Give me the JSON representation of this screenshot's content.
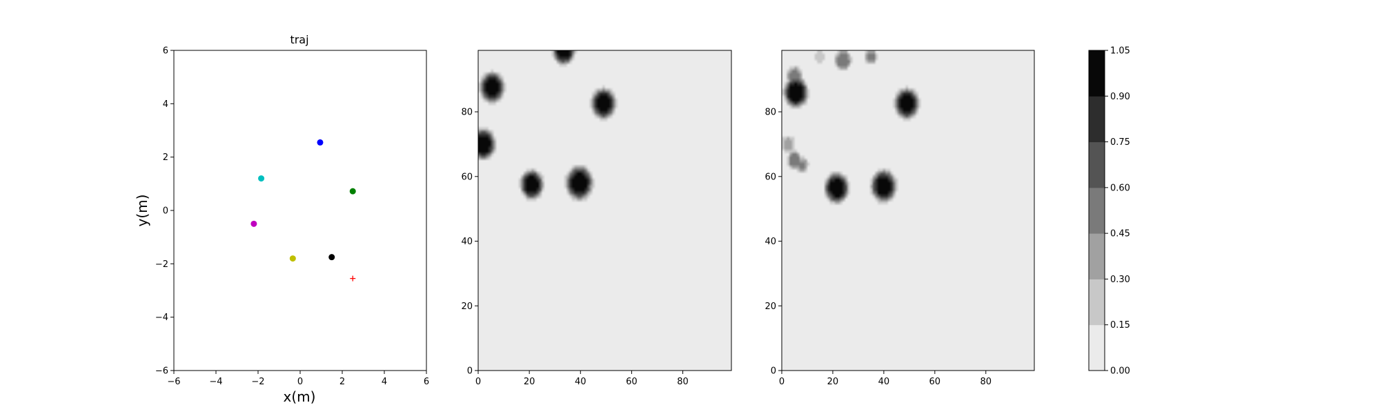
{
  "chart_data": [
    {
      "type": "scatter",
      "title": "traj",
      "xlabel": "x(m)",
      "ylabel": "y(m)",
      "xlim": [
        -6,
        6
      ],
      "ylim": [
        -6,
        6
      ],
      "xticks": [
        "−6",
        "−4",
        "−2",
        "0",
        "2",
        "4",
        "6"
      ],
      "yticks": [
        "−6",
        "−4",
        "−2",
        "0",
        "2",
        "4",
        "6"
      ],
      "grid": false,
      "points": [
        {
          "x": 0.95,
          "y": 2.55,
          "color": "#0000ff",
          "marker": "circle"
        },
        {
          "x": -1.85,
          "y": 1.2,
          "color": "#00bfbf",
          "marker": "circle"
        },
        {
          "x": 2.5,
          "y": 0.72,
          "color": "#008000",
          "marker": "circle"
        },
        {
          "x": -2.2,
          "y": -0.5,
          "color": "#bf00bf",
          "marker": "circle"
        },
        {
          "x": -0.35,
          "y": -1.8,
          "color": "#bfbf00",
          "marker": "circle"
        },
        {
          "x": 1.5,
          "y": -1.75,
          "color": "#000000",
          "marker": "circle"
        },
        {
          "x": 2.5,
          "y": -2.55,
          "color": "#ff0000",
          "marker": "plus"
        }
      ]
    },
    {
      "type": "heatmap",
      "title": "",
      "xlim": [
        0,
        99
      ],
      "ylim": [
        0,
        99
      ],
      "xticks": [
        "0",
        "20",
        "40",
        "60",
        "80"
      ],
      "yticks": [
        "0",
        "20",
        "40",
        "60",
        "80"
      ],
      "background_level": 0.05,
      "blobs": [
        {
          "x": 33.5,
          "y": 99,
          "r": 3.5,
          "peak": 1.0
        },
        {
          "x": 5.5,
          "y": 87.5,
          "r": 3.8,
          "peak": 1.0
        },
        {
          "x": 49,
          "y": 82.5,
          "r": 3.8,
          "peak": 1.0
        },
        {
          "x": 2,
          "y": 70,
          "r": 3.8,
          "peak": 1.0
        },
        {
          "x": 21,
          "y": 57.5,
          "r": 3.6,
          "peak": 1.0
        },
        {
          "x": 39.5,
          "y": 58,
          "r": 4.2,
          "peak": 1.0
        }
      ]
    },
    {
      "type": "heatmap",
      "title": "",
      "xlim": [
        0,
        99
      ],
      "ylim": [
        0,
        99
      ],
      "xticks": [
        "0",
        "20",
        "40",
        "60",
        "80"
      ],
      "yticks": [
        "0",
        "20",
        "40",
        "60",
        "80"
      ],
      "background_level": 0.05,
      "blobs": [
        {
          "x": 5.5,
          "y": 86,
          "r": 3.8,
          "peak": 1.0
        },
        {
          "x": 5,
          "y": 91,
          "r": 2.5,
          "peak": 0.55
        },
        {
          "x": 49,
          "y": 82.5,
          "r": 3.8,
          "peak": 1.0
        },
        {
          "x": 21.5,
          "y": 56.5,
          "r": 3.8,
          "peak": 1.0
        },
        {
          "x": 40,
          "y": 57,
          "r": 4.0,
          "peak": 1.0
        },
        {
          "x": 2.5,
          "y": 70,
          "r": 2.4,
          "peak": 0.35
        },
        {
          "x": 5,
          "y": 65,
          "r": 2.4,
          "peak": 0.55
        },
        {
          "x": 8,
          "y": 63.5,
          "r": 2.0,
          "peak": 0.5
        },
        {
          "x": 24,
          "y": 96,
          "r": 2.6,
          "peak": 0.6
        },
        {
          "x": 15,
          "y": 97,
          "r": 1.8,
          "peak": 0.3
        },
        {
          "x": 35,
          "y": 97,
          "r": 2.0,
          "peak": 0.5
        }
      ]
    },
    {
      "type": "colorbar",
      "levels": [
        "0.00",
        "0.15",
        "0.30",
        "0.45",
        "0.60",
        "0.75",
        "0.90",
        "1.05"
      ],
      "range": [
        0,
        1.05
      ],
      "colors": [
        "#ebebeb",
        "#c8c8c8",
        "#a1a1a1",
        "#7a7a7a",
        "#545454",
        "#2d2d2d",
        "#080808"
      ]
    }
  ]
}
